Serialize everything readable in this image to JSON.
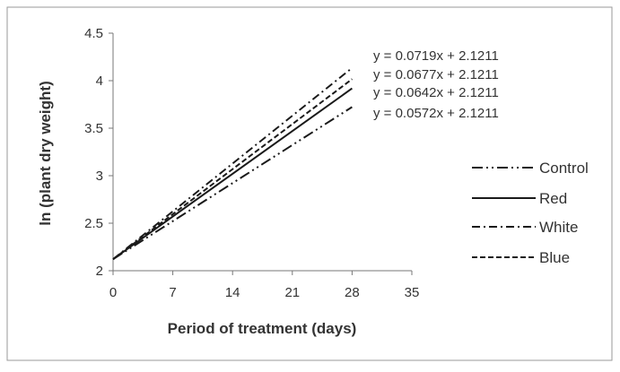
{
  "chart_data": {
    "type": "line",
    "title": "",
    "xlabel": "Period of treatment (days)",
    "ylabel": "ln (plant dry weight)",
    "xlim": [
      0,
      35
    ],
    "ylim": [
      2,
      4.5
    ],
    "xticks": [
      0,
      7,
      14,
      21,
      28,
      35
    ],
    "yticks": [
      2,
      2.5,
      3,
      3.5,
      4,
      4.5
    ],
    "xtick_labels": [
      "0",
      "7",
      "14",
      "21",
      "28",
      "35"
    ],
    "ytick_labels": [
      "2",
      "2.5",
      "3",
      "3.5",
      "4",
      "4.5"
    ],
    "grid": false,
    "legend_position": "right",
    "series": [
      {
        "name": "Control",
        "dash": "long-dash-dot-dot",
        "slope": 0.0572,
        "intercept": 2.1211,
        "x": [
          0,
          28
        ],
        "y": [
          2.1211,
          3.7227
        ]
      },
      {
        "name": "Red",
        "dash": "solid",
        "slope": 0.0642,
        "intercept": 2.1211,
        "x": [
          0,
          28
        ],
        "y": [
          2.1211,
          3.9187
        ]
      },
      {
        "name": "White",
        "dash": "dash-dot",
        "slope": 0.0719,
        "intercept": 2.1211,
        "x": [
          0,
          28
        ],
        "y": [
          2.1211,
          4.1343
        ]
      },
      {
        "name": "Blue",
        "dash": "dash",
        "slope": 0.0677,
        "intercept": 2.1211,
        "x": [
          0,
          28
        ],
        "y": [
          2.1211,
          4.0167
        ]
      }
    ],
    "legend_order": [
      "Control",
      "Red",
      "White",
      "Blue"
    ],
    "equations": [
      "y = 0.0719x + 2.1211",
      "y = 0.0677x + 2.1211",
      "y = 0.0642x + 2.1211",
      "y = 0.0572x + 2.1211"
    ],
    "colors": {
      "line": "#1a1a1a",
      "axis": "#777777",
      "text": "#333333",
      "frame": "#9a9a9a"
    }
  }
}
